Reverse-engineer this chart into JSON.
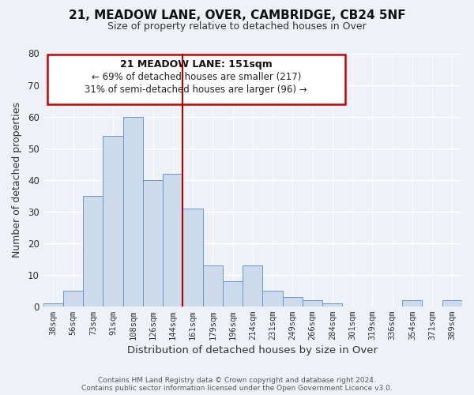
{
  "title": "21, MEADOW LANE, OVER, CAMBRIDGE, CB24 5NF",
  "subtitle": "Size of property relative to detached houses in Over",
  "xlabel": "Distribution of detached houses by size in Over",
  "ylabel": "Number of detached properties",
  "bar_color": "#cddaeb",
  "bar_edge_color": "#6699cc",
  "background_color": "#eef2f7",
  "grid_color": "#ffffff",
  "categories": [
    "38sqm",
    "56sqm",
    "73sqm",
    "91sqm",
    "108sqm",
    "126sqm",
    "144sqm",
    "161sqm",
    "179sqm",
    "196sqm",
    "214sqm",
    "231sqm",
    "249sqm",
    "266sqm",
    "284sqm",
    "301sqm",
    "319sqm",
    "336sqm",
    "354sqm",
    "371sqm",
    "389sqm"
  ],
  "values": [
    1,
    5,
    35,
    54,
    60,
    40,
    42,
    31,
    13,
    8,
    13,
    5,
    3,
    2,
    1,
    0,
    0,
    0,
    2,
    0,
    2
  ],
  "ylim": [
    0,
    80
  ],
  "yticks": [
    0,
    10,
    20,
    30,
    40,
    50,
    60,
    70,
    80
  ],
  "property_line_x": 7.0,
  "property_line_color": "#aa0000",
  "annotation_title": "21 MEADOW LANE: 151sqm",
  "annotation_line1": "← 69% of detached houses are smaller (217)",
  "annotation_line2": "31% of semi-detached houses are larger (96) →",
  "annotation_box_color": "#ffffff",
  "annotation_box_edge": "#cc0000",
  "footer1": "Contains HM Land Registry data © Crown copyright and database right 2024.",
  "footer2": "Contains public sector information licensed under the Open Government Licence v3.0."
}
